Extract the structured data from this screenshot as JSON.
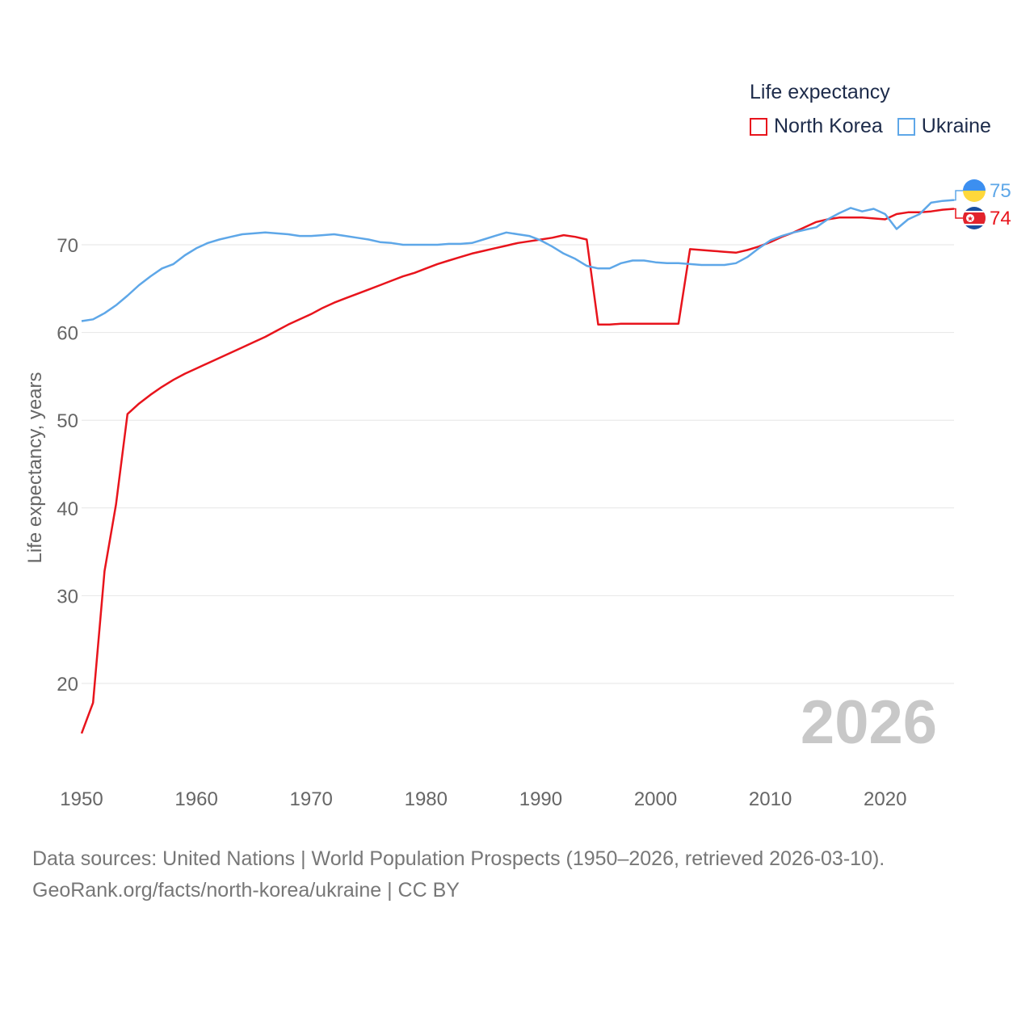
{
  "legend": {
    "title": "Life expectancy",
    "items": [
      {
        "label": "North Korea",
        "color": "#e8141c"
      },
      {
        "label": "Ukraine",
        "color": "#5ea7e8"
      }
    ]
  },
  "source": {
    "line1": "Data sources: United Nations | World Population Prospects (1950–2026, retrieved 2026-03-10).",
    "line2": "GeoRank.org/facts/north-korea/ukraine | CC BY"
  },
  "chart_data": {
    "type": "line",
    "title": "Life expectancy",
    "year_label": "2026",
    "xlabel": "",
    "ylabel": "Life expectancy, years",
    "xlim": [
      1950,
      2026
    ],
    "ylim": [
      12,
      80
    ],
    "x_ticks": [
      1950,
      1960,
      1970,
      1980,
      1990,
      2000,
      2010,
      2020
    ],
    "y_ticks": [
      20,
      30,
      40,
      50,
      60,
      70
    ],
    "grid": true,
    "x": [
      1950,
      1951,
      1952,
      1953,
      1954,
      1955,
      1956,
      1957,
      1958,
      1959,
      1960,
      1961,
      1962,
      1963,
      1964,
      1965,
      1966,
      1967,
      1968,
      1969,
      1970,
      1971,
      1972,
      1973,
      1974,
      1975,
      1976,
      1977,
      1978,
      1979,
      1980,
      1981,
      1982,
      1983,
      1984,
      1985,
      1986,
      1987,
      1988,
      1989,
      1990,
      1991,
      1992,
      1993,
      1994,
      1995,
      1996,
      1997,
      1998,
      1999,
      2000,
      2001,
      2002,
      2003,
      2004,
      2005,
      2006,
      2007,
      2008,
      2009,
      2010,
      2011,
      2012,
      2013,
      2014,
      2015,
      2016,
      2017,
      2018,
      2019,
      2020,
      2021,
      2022,
      2023,
      2024,
      2025,
      2026
    ],
    "series": [
      {
        "name": "North Korea",
        "color": "#e8141c",
        "end_label": "74",
        "values": [
          14.3,
          17.8,
          32.8,
          40.4,
          50.7,
          51.9,
          52.9,
          53.8,
          54.6,
          55.3,
          55.9,
          56.5,
          57.1,
          57.7,
          58.3,
          58.9,
          59.5,
          60.2,
          60.9,
          61.5,
          62.1,
          62.8,
          63.4,
          63.9,
          64.4,
          64.9,
          65.4,
          65.9,
          66.4,
          66.8,
          67.3,
          67.8,
          68.2,
          68.6,
          69.0,
          69.3,
          69.6,
          69.9,
          70.2,
          70.4,
          70.6,
          70.8,
          71.1,
          70.9,
          70.6,
          60.9,
          60.9,
          61.0,
          61.0,
          61.0,
          61.0,
          61.0,
          61.0,
          69.5,
          69.4,
          69.3,
          69.2,
          69.1,
          69.4,
          69.8,
          70.3,
          70.9,
          71.4,
          72.0,
          72.6,
          72.9,
          73.1,
          73.1,
          73.1,
          73.0,
          72.9,
          73.5,
          73.7,
          73.7,
          73.8,
          74.0,
          74.1
        ]
      },
      {
        "name": "Ukraine",
        "color": "#5ea7e8",
        "end_label": "75",
        "values": [
          61.3,
          61.5,
          62.2,
          63.1,
          64.2,
          65.4,
          66.4,
          67.3,
          67.8,
          68.8,
          69.6,
          70.2,
          70.6,
          70.9,
          71.2,
          71.3,
          71.4,
          71.3,
          71.2,
          71.0,
          71.0,
          71.1,
          71.2,
          71.0,
          70.8,
          70.6,
          70.3,
          70.2,
          70.0,
          70.0,
          70.0,
          70.0,
          70.1,
          70.1,
          70.2,
          70.6,
          71.0,
          71.4,
          71.2,
          71.0,
          70.5,
          69.8,
          69.0,
          68.4,
          67.6,
          67.3,
          67.3,
          67.9,
          68.2,
          68.2,
          68.0,
          67.9,
          67.9,
          67.8,
          67.7,
          67.7,
          67.7,
          67.9,
          68.6,
          69.6,
          70.5,
          71.0,
          71.4,
          71.7,
          72.0,
          72.9,
          73.6,
          74.2,
          73.8,
          74.1,
          73.5,
          71.8,
          72.9,
          73.5,
          74.8,
          75.0,
          75.1
        ]
      }
    ]
  }
}
